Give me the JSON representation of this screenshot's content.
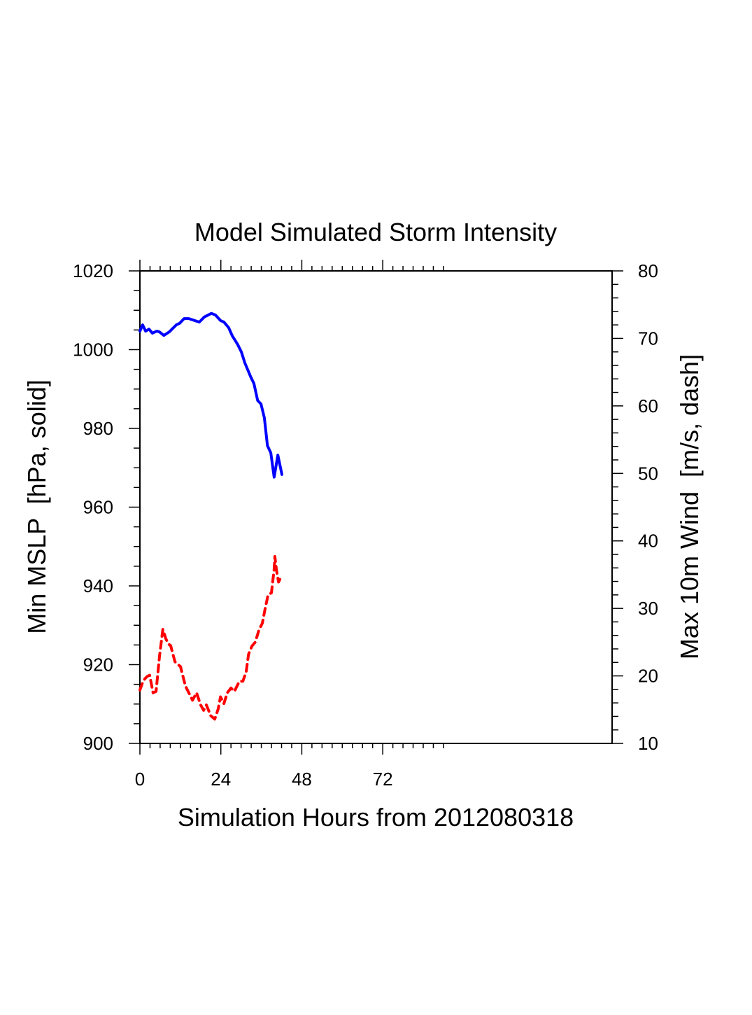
{
  "chart_data": {
    "type": "line",
    "title": "Model Simulated Storm Intensity",
    "xlabel": "Simulation Hours from 2012080318",
    "ylabel_left": "Min MSLP  [hPa, solid]",
    "ylabel_right": "Max 10m Wind  [m/s, dash]",
    "xlim": [
      0,
      140
    ],
    "ylim_left": [
      900,
      1020
    ],
    "ylim_right": [
      10,
      80
    ],
    "x_major_ticks": [
      0,
      24,
      48,
      72
    ],
    "x_tick_labels": [
      "0",
      "24",
      "48",
      "72"
    ],
    "x_minor_step": 3,
    "x_minor_max": 90,
    "y_left_major_ticks": [
      900,
      920,
      940,
      960,
      980,
      1000,
      1020
    ],
    "y_left_tick_labels": [
      "900",
      "920",
      "940",
      "960",
      "980",
      "1000",
      "1020"
    ],
    "y_left_minor_step": 5,
    "y_right_major_ticks": [
      10,
      20,
      30,
      40,
      50,
      60,
      70,
      80
    ],
    "y_right_tick_labels": [
      "10",
      "20",
      "30",
      "40",
      "50",
      "60",
      "70",
      "80"
    ],
    "y_right_minor_step": 2,
    "grid": false,
    "series": [
      {
        "name": "Min MSLP",
        "axis": "left",
        "style": "solid",
        "color": "#0000ff",
        "x": [
          0,
          0.8,
          1.7,
          2.7,
          3.7,
          5.0,
          5.8,
          7.1,
          8.7,
          10.8,
          11.8,
          13.1,
          14.5,
          16.2,
          17.6,
          19.1,
          21.2,
          22.4,
          23.9,
          24.9,
          26.3,
          27.4,
          29.0,
          30.1,
          31.1,
          32.8,
          33.8,
          34.9,
          35.9,
          36.9,
          37.8,
          38.8,
          39.8,
          40.9,
          42.1
        ],
        "values": [
          1004.7,
          1006.3,
          1004.7,
          1005.2,
          1004.2,
          1004.7,
          1004.5,
          1003.6,
          1004.5,
          1006.3,
          1006.7,
          1007.9,
          1007.9,
          1007.4,
          1007.0,
          1008.3,
          1009.2,
          1008.8,
          1007.4,
          1007.0,
          1005.6,
          1003.5,
          1001.3,
          999.4,
          996.7,
          993.2,
          991.4,
          987.1,
          986.2,
          982.7,
          975.6,
          973.8,
          967.6,
          973.2,
          968.3
        ]
      },
      {
        "name": "Max 10m Wind",
        "axis": "right",
        "style": "dash",
        "color": "#ff0000",
        "x": [
          0,
          1.0,
          2.1,
          2.9,
          3.9,
          4.8,
          5.8,
          6.8,
          7.7,
          8.5,
          9.1,
          10.4,
          11.0,
          12.0,
          13.5,
          15.6,
          16.8,
          18.0,
          18.9,
          19.7,
          21.0,
          22.2,
          23.2,
          23.9,
          24.9,
          25.9,
          27.0,
          28.0,
          29.5,
          30.5,
          31.5,
          32.2,
          33.2,
          34.2,
          35.3,
          36.3,
          37.1,
          38.0,
          39.0,
          39.8,
          40.0,
          40.5,
          41.1,
          42.1
        ],
        "values": [
          17.9,
          19.3,
          19.9,
          20.1,
          17.5,
          17.7,
          22.9,
          26.9,
          25.5,
          24.7,
          24.5,
          22.1,
          21.8,
          21.4,
          18.5,
          16.4,
          17.5,
          15.7,
          14.9,
          15.7,
          14.1,
          13.6,
          15.1,
          16.9,
          15.9,
          17.5,
          18.2,
          17.7,
          19.2,
          19.2,
          20.6,
          23.2,
          24.4,
          25.0,
          26.8,
          27.8,
          29.9,
          32.0,
          32.3,
          35.8,
          37.7,
          35.6,
          33.9,
          34.9
        ]
      }
    ]
  }
}
